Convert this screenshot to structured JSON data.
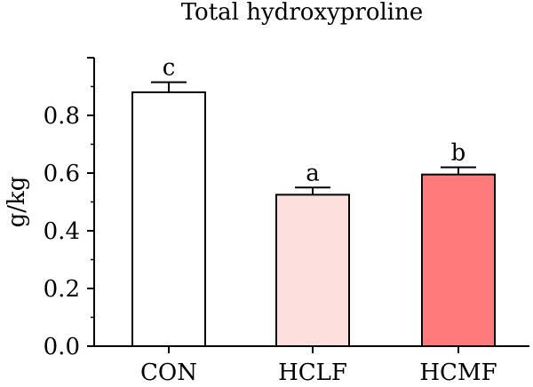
{
  "chart_data": {
    "type": "bar",
    "title": "Total hydroxyproline",
    "xlabel": "",
    "ylabel": "g/kg",
    "ylim": [
      0,
      1.0
    ],
    "yticks": [
      0.0,
      0.2,
      0.4,
      0.6,
      0.8
    ],
    "ytick_labels": [
      "0.0",
      "0.2",
      "0.4",
      "0.6",
      "0.8"
    ],
    "categories": [
      "CON",
      "HCLF",
      "HCMF"
    ],
    "values": [
      0.88,
      0.525,
      0.595
    ],
    "errors": [
      0.035,
      0.025,
      0.025
    ],
    "significance_letters": [
      "c",
      "a",
      "b"
    ],
    "bar_colors": [
      "#ffffff",
      "#fde0de",
      "#ff7b7b"
    ],
    "grid": false,
    "legend": "none"
  }
}
